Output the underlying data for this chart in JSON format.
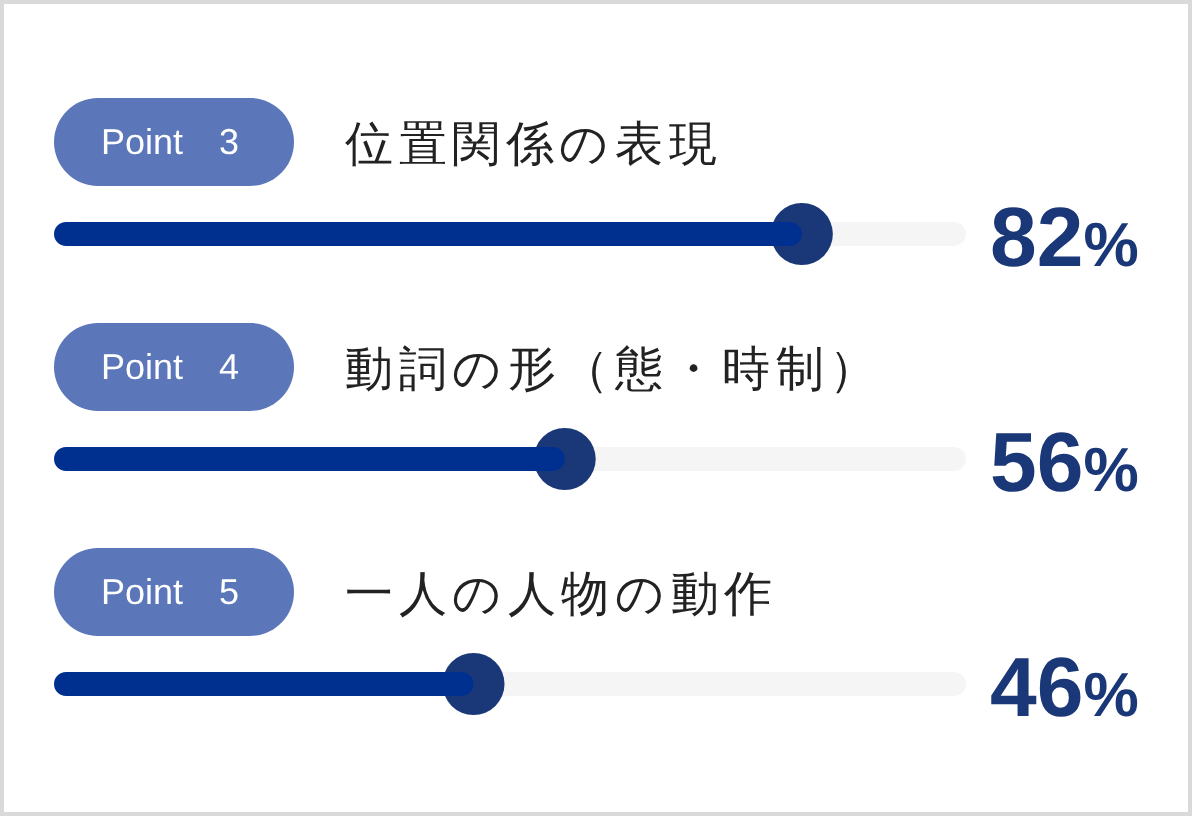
{
  "chart_data": {
    "type": "bar",
    "orientation": "horizontal",
    "stacked": true,
    "categories": [
      "位置関係の表現",
      "動詞の形（態・時制）",
      "一人の人物の動作"
    ],
    "series": [
      {
        "color": "#00308f",
        "values": [
          82,
          56,
          46
        ],
        "value_labels": [
          "82%",
          "56%",
          "46%"
        ]
      },
      {
        "color": "#f5f5f5",
        "values": [
          18,
          44,
          54
        ]
      }
    ],
    "marker": "circle",
    "tick_labels": "y",
    "annotations": [
      {
        "text": "Point　3",
        "y": "位置関係の表現"
      },
      {
        "text": "Point　4",
        "y": "動詞の形（態・時制）"
      },
      {
        "text": "Point　5",
        "y": "一人の人物の動作"
      }
    ]
  }
}
